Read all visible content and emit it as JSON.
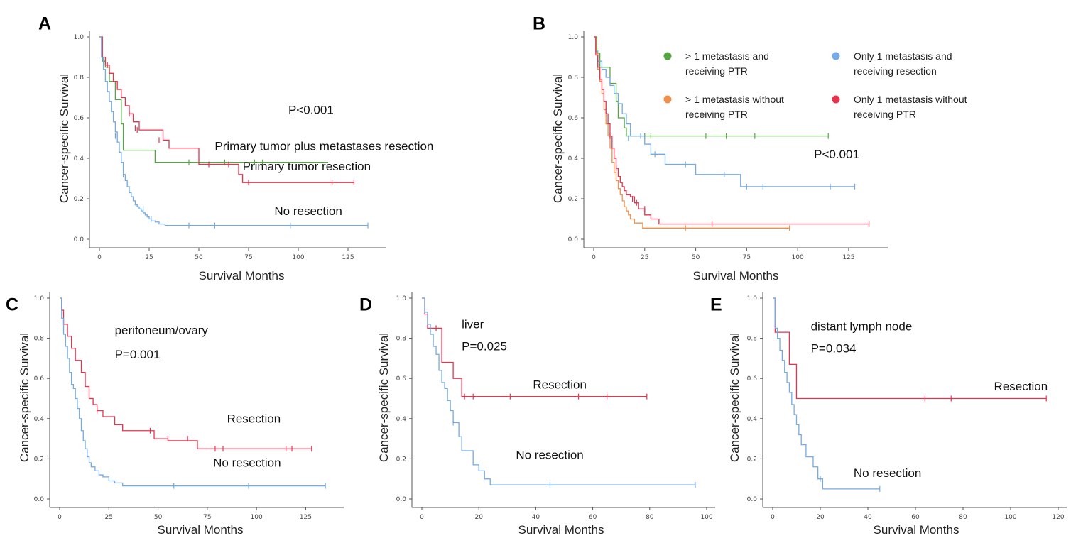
{
  "colors": {
    "red": "#e8334f",
    "green": "#55a642",
    "blue": "#74aae6",
    "orange": "#f0904a"
  },
  "chart_data": [
    {
      "id": "A",
      "type": "line",
      "panel_label": "A",
      "xlabel": "Survival Months",
      "ylabel": "Cancer-specific Survival",
      "xlim": [
        0,
        140
      ],
      "ylim": [
        0,
        1
      ],
      "xticks": [
        0,
        25,
        50,
        75,
        100,
        125
      ],
      "yticks": [
        0.0,
        0.2,
        0.4,
        0.6,
        0.8,
        1.0
      ],
      "annotations": [
        {
          "text": "P<0.001",
          "x": 95,
          "y": 0.62
        },
        {
          "text": "Primary tumor plus metastases resection",
          "x": 58,
          "y": 0.44
        },
        {
          "text": "Primary tumor resection",
          "x": 72,
          "y": 0.34
        },
        {
          "text": "No resection",
          "x": 88,
          "y": 0.12
        }
      ],
      "series": [
        {
          "name": "Primary tumor plus metastases resection",
          "color": "green",
          "x": [
            0,
            1.5,
            3,
            5,
            8,
            11,
            12,
            28,
            115
          ],
          "y": [
            1.0,
            0.88,
            0.85,
            0.78,
            0.69,
            0.57,
            0.44,
            0.38,
            0.38
          ],
          "censored": [
            [
              45,
              0.38
            ],
            [
              63,
              0.38
            ],
            [
              78,
              0.38
            ],
            [
              82,
              0.38
            ]
          ]
        },
        {
          "name": "Primary tumor resection",
          "color": "red",
          "x": [
            0,
            1.5,
            3,
            5,
            7,
            9,
            11,
            13,
            15,
            17,
            20,
            25,
            32,
            35,
            50,
            70,
            72,
            128
          ],
          "y": [
            1.0,
            0.9,
            0.86,
            0.82,
            0.78,
            0.74,
            0.7,
            0.66,
            0.62,
            0.58,
            0.54,
            0.54,
            0.49,
            0.45,
            0.37,
            0.32,
            0.28,
            0.28
          ],
          "censored": [
            [
              4,
              0.86
            ],
            [
              15,
              0.62
            ],
            [
              18,
              0.55
            ],
            [
              19,
              0.54
            ],
            [
              30,
              0.49
            ],
            [
              55,
              0.37
            ],
            [
              65,
              0.37
            ],
            [
              75,
              0.28
            ],
            [
              117,
              0.28
            ],
            [
              128,
              0.28
            ]
          ]
        },
        {
          "name": "No resection",
          "color": "blue",
          "x": [
            0,
            1,
            2,
            3,
            4,
            5,
            6,
            7,
            8,
            9,
            10,
            11,
            12,
            13,
            14,
            15,
            16,
            17,
            18,
            19,
            20,
            21,
            22,
            23,
            24,
            25,
            26,
            28,
            30,
            33,
            135
          ],
          "y": [
            1.0,
            0.9,
            0.84,
            0.78,
            0.73,
            0.68,
            0.63,
            0.58,
            0.53,
            0.48,
            0.43,
            0.38,
            0.32,
            0.29,
            0.26,
            0.23,
            0.21,
            0.19,
            0.17,
            0.16,
            0.15,
            0.14,
            0.13,
            0.12,
            0.11,
            0.1,
            0.09,
            0.085,
            0.075,
            0.068,
            0.068
          ],
          "censored": [
            [
              8,
              0.51
            ],
            [
              12,
              0.32
            ],
            [
              22,
              0.15
            ],
            [
              26,
              0.1
            ],
            [
              45,
              0.068
            ],
            [
              58,
              0.068
            ],
            [
              96,
              0.068
            ],
            [
              135,
              0.068
            ]
          ]
        }
      ]
    },
    {
      "id": "B",
      "type": "line",
      "panel_label": "B",
      "xlabel": "Survival Months",
      "ylabel": "Cancer-specific Survival",
      "xlim": [
        0,
        140
      ],
      "ylim": [
        0,
        1
      ],
      "xticks": [
        0,
        25,
        50,
        75,
        100,
        125
      ],
      "yticks": [
        0.0,
        0.2,
        0.4,
        0.6,
        0.8,
        1.0
      ],
      "annotations": [
        {
          "text": "P<0.001",
          "x": 108,
          "y": 0.4
        }
      ],
      "legend": [
        {
          "label_line1": "> 1 metastasis and",
          "label_line2": "receiving PTR",
          "color": "green"
        },
        {
          "label_line1": "Only 1 metastasis and",
          "label_line2": "receiving resection",
          "color": "blue"
        },
        {
          "label_line1": "> 1 metastasis without",
          "label_line2": "receiving PTR",
          "color": "orange"
        },
        {
          "label_line1": "Only 1 metastasis without",
          "label_line2": "receiving PTR",
          "color": "red"
        }
      ],
      "series": [
        {
          "name": "> 1 metastasis and receiving PTR",
          "color": "green",
          "x": [
            0,
            1.5,
            3,
            8,
            11,
            12,
            13,
            15,
            16,
            115
          ],
          "y": [
            1.0,
            0.92,
            0.85,
            0.77,
            0.68,
            0.6,
            0.6,
            0.55,
            0.51,
            0.51
          ],
          "censored": [
            [
              25,
              0.51
            ],
            [
              28,
              0.51
            ],
            [
              55,
              0.51
            ],
            [
              65,
              0.51
            ],
            [
              79,
              0.51
            ],
            [
              115,
              0.51
            ]
          ]
        },
        {
          "name": "Only 1 metastasis and receiving resection",
          "color": "blue",
          "x": [
            0,
            1,
            2,
            4,
            6,
            8,
            10,
            12,
            14,
            16,
            18,
            22,
            25,
            28,
            32,
            35,
            50,
            65,
            72,
            128
          ],
          "y": [
            1.0,
            0.93,
            0.88,
            0.84,
            0.8,
            0.76,
            0.72,
            0.67,
            0.62,
            0.57,
            0.51,
            0.51,
            0.47,
            0.42,
            0.42,
            0.37,
            0.32,
            0.32,
            0.26,
            0.26
          ],
          "censored": [
            [
              17,
              0.5
            ],
            [
              23,
              0.51
            ],
            [
              30,
              0.42
            ],
            [
              45,
              0.37
            ],
            [
              64,
              0.32
            ],
            [
              75,
              0.26
            ],
            [
              83,
              0.26
            ],
            [
              116,
              0.26
            ],
            [
              128,
              0.26
            ]
          ]
        },
        {
          "name": "> 1 metastasis without receiving PTR",
          "color": "orange",
          "x": [
            0,
            1,
            2,
            3,
            4,
            5,
            6,
            7,
            8,
            9,
            10,
            11,
            12,
            13,
            14,
            15,
            16,
            17,
            18,
            20,
            24,
            96
          ],
          "y": [
            1.0,
            0.92,
            0.84,
            0.78,
            0.72,
            0.64,
            0.57,
            0.51,
            0.45,
            0.38,
            0.33,
            0.29,
            0.25,
            0.22,
            0.19,
            0.16,
            0.14,
            0.12,
            0.1,
            0.08,
            0.055,
            0.055
          ],
          "censored": [
            [
              45,
              0.055
            ],
            [
              96,
              0.055
            ]
          ]
        },
        {
          "name": "Only 1 metastasis without receiving PTR",
          "color": "red",
          "x": [
            0,
            1,
            2,
            3,
            4,
            5,
            6,
            7,
            8,
            9,
            10,
            11,
            12,
            13,
            14,
            15,
            16,
            18,
            20,
            22,
            25,
            28,
            32,
            135
          ],
          "y": [
            1.0,
            0.91,
            0.85,
            0.79,
            0.74,
            0.68,
            0.62,
            0.57,
            0.51,
            0.45,
            0.4,
            0.35,
            0.31,
            0.28,
            0.26,
            0.24,
            0.22,
            0.21,
            0.18,
            0.15,
            0.12,
            0.1,
            0.075,
            0.075
          ],
          "censored": [
            [
              8,
              0.51
            ],
            [
              11,
              0.35
            ],
            [
              19,
              0.2
            ],
            [
              21,
              0.18
            ],
            [
              25,
              0.15
            ],
            [
              58,
              0.075
            ],
            [
              135,
              0.075
            ]
          ]
        }
      ]
    },
    {
      "id": "C",
      "type": "line",
      "panel_label": "C",
      "xlabel": "Survival Months",
      "ylabel": "Cancer-specific Survival",
      "xlim": [
        0,
        140
      ],
      "ylim": [
        0,
        1
      ],
      "xticks": [
        0,
        25,
        50,
        75,
        100,
        125
      ],
      "yticks": [
        0.0,
        0.2,
        0.4,
        0.6,
        0.8,
        1.0
      ],
      "annotations": [
        {
          "text": "peritoneum/ovary",
          "x": 28,
          "y": 0.82
        },
        {
          "text": "P=0.001",
          "x": 28,
          "y": 0.7
        },
        {
          "text": "Resection",
          "x": 85,
          "y": 0.38
        },
        {
          "text": "No resection",
          "x": 78,
          "y": 0.16
        }
      ],
      "series": [
        {
          "name": "Resection",
          "color": "red",
          "x": [
            0,
            1,
            2,
            4,
            6,
            8,
            11,
            13,
            15,
            17,
            19,
            22,
            28,
            32,
            48,
            55,
            70,
            128
          ],
          "y": [
            1.0,
            0.94,
            0.87,
            0.81,
            0.75,
            0.69,
            0.63,
            0.56,
            0.5,
            0.47,
            0.44,
            0.41,
            0.37,
            0.34,
            0.3,
            0.29,
            0.25,
            0.25
          ],
          "censored": [
            [
              19,
              0.44
            ],
            [
              46,
              0.34
            ],
            [
              55,
              0.3
            ],
            [
              65,
              0.3
            ],
            [
              79,
              0.25
            ],
            [
              83,
              0.25
            ],
            [
              115,
              0.25
            ],
            [
              118,
              0.25
            ],
            [
              128,
              0.25
            ]
          ]
        },
        {
          "name": "No resection",
          "color": "blue",
          "x": [
            0,
            1,
            2,
            3,
            4,
            5,
            6,
            7,
            8,
            9,
            10,
            11,
            12,
            13,
            14,
            15,
            16,
            18,
            20,
            22,
            25,
            28,
            32,
            135
          ],
          "y": [
            1.0,
            0.9,
            0.82,
            0.76,
            0.7,
            0.63,
            0.57,
            0.55,
            0.5,
            0.45,
            0.4,
            0.34,
            0.29,
            0.25,
            0.21,
            0.18,
            0.16,
            0.14,
            0.12,
            0.11,
            0.09,
            0.08,
            0.065,
            0.065
          ],
          "censored": [
            [
              58,
              0.065
            ],
            [
              96,
              0.065
            ],
            [
              135,
              0.065
            ]
          ]
        }
      ]
    },
    {
      "id": "D",
      "type": "line",
      "panel_label": "D",
      "xlabel": "Survival Months",
      "ylabel": "Cancer-specific Survival",
      "xlim": [
        0,
        100
      ],
      "ylim": [
        0,
        1
      ],
      "xticks": [
        0,
        20,
        40,
        60,
        80,
        100
      ],
      "yticks": [
        0.0,
        0.2,
        0.4,
        0.6,
        0.8,
        1.0
      ],
      "annotations": [
        {
          "text": "liver",
          "x": 14,
          "y": 0.85
        },
        {
          "text": "P=0.025",
          "x": 14,
          "y": 0.74
        },
        {
          "text": "Resection",
          "x": 39,
          "y": 0.55
        },
        {
          "text": "No resection",
          "x": 33,
          "y": 0.2
        }
      ],
      "series": [
        {
          "name": "Resection",
          "color": "red",
          "x": [
            0,
            1,
            2,
            3,
            7,
            11,
            13,
            14,
            79
          ],
          "y": [
            1.0,
            0.92,
            0.85,
            0.85,
            0.68,
            0.6,
            0.6,
            0.51,
            0.51
          ],
          "censored": [
            [
              5,
              0.85
            ],
            [
              15,
              0.51
            ],
            [
              18,
              0.51
            ],
            [
              31,
              0.51
            ],
            [
              55,
              0.51
            ],
            [
              65,
              0.51
            ],
            [
              79,
              0.51
            ]
          ]
        },
        {
          "name": "No resection",
          "color": "blue",
          "x": [
            0,
            1,
            2,
            3,
            4,
            5,
            6,
            7,
            8,
            9,
            10,
            11,
            13,
            14,
            18,
            20,
            22,
            24,
            96
          ],
          "y": [
            1.0,
            0.93,
            0.87,
            0.82,
            0.76,
            0.72,
            0.64,
            0.58,
            0.55,
            0.49,
            0.44,
            0.38,
            0.31,
            0.24,
            0.17,
            0.14,
            0.1,
            0.07,
            0.07
          ],
          "censored": [
            [
              11,
              0.38
            ],
            [
              45,
              0.07
            ],
            [
              96,
              0.07
            ]
          ]
        }
      ]
    },
    {
      "id": "E",
      "type": "line",
      "panel_label": "E",
      "xlabel": "Survival Months",
      "ylabel": "Cancer-specific Survival",
      "xlim": [
        0,
        120
      ],
      "ylim": [
        0,
        1
      ],
      "xticks": [
        0,
        20,
        40,
        60,
        80,
        100,
        120
      ],
      "yticks": [
        0.0,
        0.2,
        0.4,
        0.6,
        0.8,
        1.0
      ],
      "annotations": [
        {
          "text": "distant lymph node",
          "x": 16,
          "y": 0.84
        },
        {
          "text": "P=0.034",
          "x": 16,
          "y": 0.73
        },
        {
          "text": "Resection",
          "x": 93,
          "y": 0.54
        },
        {
          "text": "No resection",
          "x": 34,
          "y": 0.11
        }
      ],
      "series": [
        {
          "name": "Resection",
          "color": "red",
          "x": [
            0,
            1,
            7,
            10,
            115
          ],
          "y": [
            1.0,
            0.83,
            0.67,
            0.5,
            0.5
          ],
          "censored": [
            [
              64,
              0.5
            ],
            [
              75,
              0.5
            ],
            [
              115,
              0.5
            ]
          ]
        },
        {
          "name": "No resection",
          "color": "blue",
          "x": [
            0,
            1,
            2,
            3,
            4,
            5,
            6,
            7,
            8,
            9,
            10,
            11,
            12,
            14,
            17,
            19,
            21,
            45
          ],
          "y": [
            1.0,
            0.85,
            0.8,
            0.74,
            0.69,
            0.63,
            0.58,
            0.53,
            0.47,
            0.42,
            0.37,
            0.32,
            0.27,
            0.21,
            0.16,
            0.1,
            0.05,
            0.05
          ],
          "censored": [
            [
              20,
              0.1
            ],
            [
              45,
              0.05
            ]
          ]
        }
      ]
    }
  ]
}
